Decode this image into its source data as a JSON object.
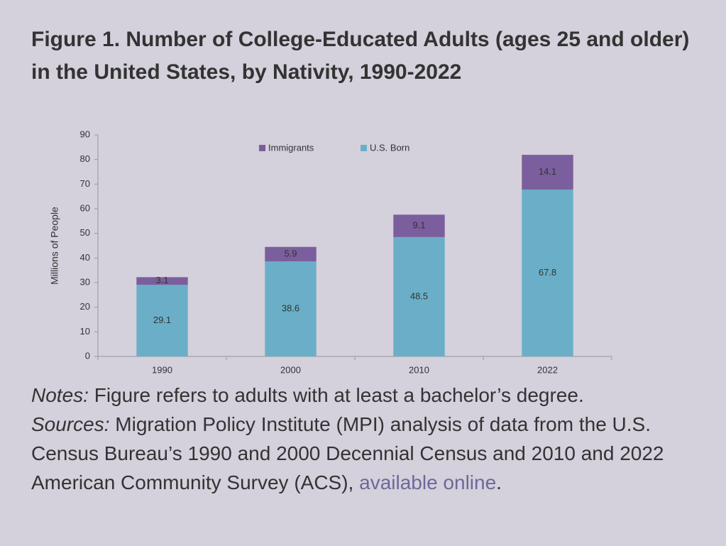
{
  "chart_data": {
    "type": "bar",
    "stacked": true,
    "title": "Figure 1. Number of College-Educated Adults (ages 25 and older) in the United States, by Nativity, 1990-2022",
    "y_label": "Millions of People",
    "categories": [
      "1990",
      "2000",
      "2010",
      "2022"
    ],
    "series": [
      {
        "name": "Immigrants",
        "color": "#7b5e9d",
        "values": [
          3.1,
          5.9,
          9.1,
          14.1
        ]
      },
      {
        "name": "U.S. Born",
        "color": "#6aafc7",
        "values": [
          29.1,
          38.6,
          48.5,
          67.8
        ]
      }
    ],
    "ylim": [
      0,
      90
    ],
    "yticks": [
      0,
      10,
      20,
      30,
      40,
      50,
      60,
      70,
      80,
      90
    ],
    "grid": false
  },
  "notes": {
    "label": "Notes:",
    "text": "Figure refers to adults with at least a bachelor’s degree."
  },
  "sources": {
    "label": "Sources:",
    "text": "Migration Policy Institute (MPI) analysis of data from the U.S. Census Bureau’s 1990 and 2000 Decennial Census and 2010 and 2022 American Community Survey (ACS),",
    "link": "available online",
    "end": "."
  }
}
